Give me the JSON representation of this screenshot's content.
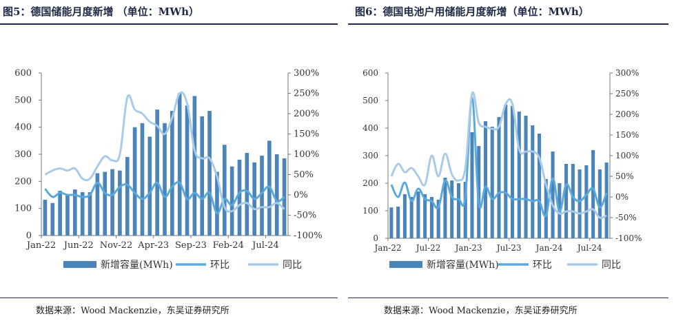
{
  "panels": [
    {
      "title": "图5：德国储能月度新增 （单位：MWh）",
      "source": "数据来源：Wood Mackenzie，东吴证券研究所"
    },
    {
      "title": "图6：德国电池户用储能月度新增（单位：MWh）",
      "source": "数据来源：Wood Mackenzie，东吴证券研究所"
    }
  ],
  "chart_data": [
    {
      "type": "bar+line",
      "title": "图5：德国储能月度新增 （单位：MWh）",
      "ylim": [
        0,
        600
      ],
      "y2lim": [
        -100,
        300
      ],
      "yticks": [
        "0",
        "100",
        "200",
        "300",
        "400",
        "500",
        "600"
      ],
      "y2ticks": [
        "-100%",
        "-50%",
        "0%",
        "50%",
        "100%",
        "150%",
        "200%",
        "250%",
        "300%"
      ],
      "xticks": [
        "Jan-22",
        "Jun-22",
        "Nov-22",
        "Apr-23",
        "Sep-23",
        "Feb-24",
        "Jul-24"
      ],
      "xtick_index": [
        0,
        5,
        10,
        15,
        20,
        25,
        30
      ],
      "categories": [
        "Jan-22",
        "Feb-22",
        "Mar-22",
        "Apr-22",
        "May-22",
        "Jun-22",
        "Jul-22",
        "Aug-22",
        "Sep-22",
        "Oct-22",
        "Nov-22",
        "Dec-22",
        "Jan-23",
        "Feb-23",
        "Mar-23",
        "Apr-23",
        "May-23",
        "Jun-23",
        "Jul-23",
        "Aug-23",
        "Sep-23",
        "Oct-23",
        "Nov-23",
        "Dec-23",
        "Jan-24",
        "Feb-24",
        "Mar-24",
        "Apr-24",
        "May-24",
        "Jun-24",
        "Jul-24",
        "Aug-24",
        "Sep-24"
      ],
      "series": [
        {
          "name": "新增容量(MWh)",
          "type": "bar",
          "axis": "left",
          "color": "#4a84b8",
          "values": [
            132,
            120,
            165,
            150,
            170,
            160,
            160,
            230,
            235,
            245,
            240,
            290,
            400,
            415,
            365,
            465,
            415,
            460,
            525,
            480,
            515,
            440,
            460,
            235,
            335,
            255,
            280,
            305,
            270,
            295,
            350,
            300,
            285
          ]
        },
        {
          "name": "环比",
          "type": "line",
          "axis": "right",
          "color": "#5aa9dc",
          "values": [
            15,
            -5,
            5,
            0,
            0,
            -5,
            0,
            30,
            5,
            0,
            20,
            25,
            5,
            -10,
            5,
            30,
            -5,
            20,
            30,
            -10,
            5,
            -10,
            5,
            -45,
            -10,
            -25,
            5,
            10,
            -10,
            5,
            20,
            -15,
            -5
          ]
        },
        {
          "name": "同比",
          "type": "line",
          "axis": "right",
          "color": "#a9cbe8",
          "values": [
            50,
            60,
            65,
            60,
            65,
            40,
            40,
            70,
            95,
            85,
            100,
            240,
            210,
            200,
            180,
            170,
            150,
            190,
            250,
            225,
            110,
            90,
            90,
            45,
            -30,
            -40,
            -25,
            -20,
            -35,
            -30,
            -30,
            -20,
            -35
          ]
        }
      ],
      "legend": "bottom"
    },
    {
      "type": "bar+line",
      "title": "图6：德国电池户用储能月度新增（单位：MWh）",
      "ylim": [
        0,
        600
      ],
      "y2lim": [
        -100,
        300
      ],
      "yticks": [
        "0",
        "100",
        "200",
        "300",
        "400",
        "500",
        "600"
      ],
      "y2ticks": [
        "-100%",
        "-50%",
        "0%",
        "50%",
        "100%",
        "150%",
        "200%",
        "250%",
        "300%"
      ],
      "xticks": [
        "Jan-22",
        "Jul-22",
        "Jan-23",
        "Jul-23",
        "Jan-24",
        "Jul-24"
      ],
      "xtick_index": [
        0,
        6,
        12,
        18,
        24,
        30
      ],
      "categories": [
        "Jan-22",
        "Feb-22",
        "Mar-22",
        "Apr-22",
        "May-22",
        "Jun-22",
        "Jul-22",
        "Aug-22",
        "Sep-22",
        "Oct-22",
        "Nov-22",
        "Dec-22",
        "Jan-23",
        "Feb-23",
        "Mar-23",
        "Apr-23",
        "May-23",
        "Jun-23",
        "Jul-23",
        "Aug-23",
        "Sep-23",
        "Oct-23",
        "Nov-23",
        "Dec-23",
        "Jan-24",
        "Feb-24",
        "Mar-24",
        "Apr-24",
        "May-24",
        "Jun-24",
        "Jul-24",
        "Aug-24",
        "Sep-24"
      ],
      "series": [
        {
          "name": "新增容量(MWh)",
          "type": "bar",
          "axis": "left",
          "color": "#4a84b8",
          "values": [
            112,
            115,
            160,
            150,
            170,
            160,
            150,
            140,
            220,
            210,
            200,
            205,
            385,
            335,
            425,
            405,
            440,
            485,
            480,
            460,
            445,
            410,
            380,
            215,
            315,
            200,
            270,
            270,
            250,
            265,
            320,
            250,
            275
          ]
        },
        {
          "name": "环比",
          "type": "line",
          "axis": "right",
          "color": "#5aa9dc",
          "values": [
            30,
            0,
            35,
            -10,
            20,
            -5,
            -10,
            -25,
            40,
            0,
            -5,
            0,
            240,
            -15,
            25,
            -5,
            10,
            10,
            -5,
            -5,
            -5,
            -10,
            -10,
            -45,
            45,
            -35,
            30,
            0,
            -10,
            5,
            20,
            -25,
            10
          ]
        },
        {
          "name": "同比",
          "type": "line",
          "axis": "right",
          "color": "#a9cbe8",
          "values": [
            50,
            80,
            60,
            70,
            50,
            30,
            100,
            50,
            105,
            55,
            40,
            70,
            250,
            180,
            170,
            165,
            170,
            225,
            225,
            115,
            110,
            110,
            95,
            30,
            -20,
            -40,
            -35,
            -35,
            -40,
            -35,
            -30,
            -50,
            -45
          ]
        }
      ],
      "legend": "bottom"
    }
  ]
}
